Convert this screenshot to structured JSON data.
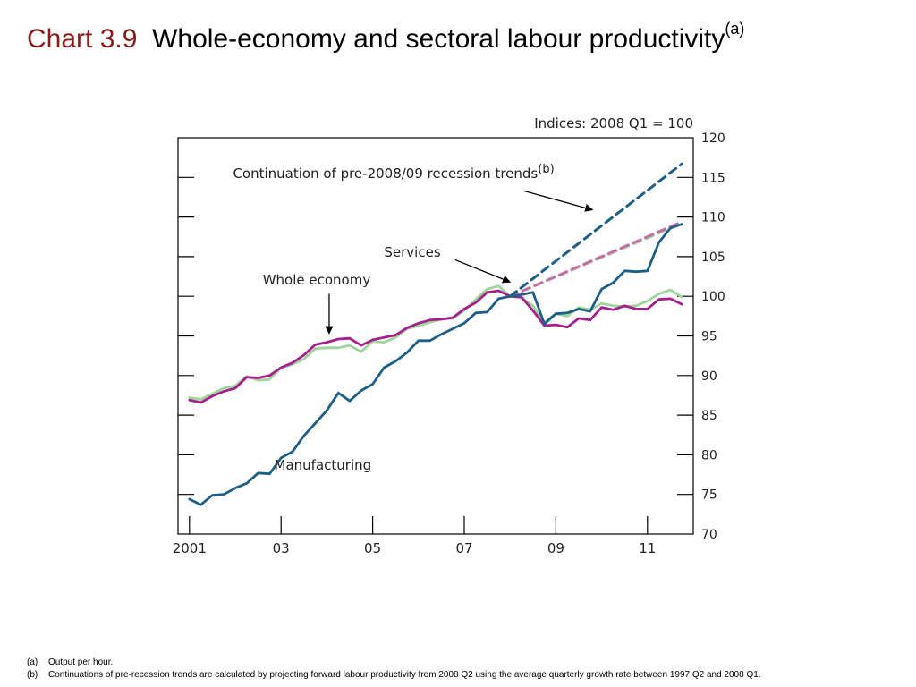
{
  "slide": {
    "chart_label": "Chart 3.9",
    "title": "Whole-economy and sectoral labour productivity",
    "title_note": "(a)"
  },
  "footnotes": [
    {
      "key": "(a)",
      "text": "Output per hour."
    },
    {
      "key": "(b)",
      "text": "Continuations of pre-recession trends are calculated by projecting forward labour productivity from 2008 Q2 using the average quarterly growth rate between 1997 Q2 and 2008 Q1."
    }
  ],
  "chart_data": {
    "type": "line",
    "units_label": "Indices:  2008 Q1 = 100",
    "ylim": [
      70,
      120
    ],
    "yticks": [
      70,
      75,
      80,
      85,
      90,
      95,
      100,
      105,
      110,
      115,
      120
    ],
    "xlim": [
      2000.75,
      2012.0
    ],
    "xticks": [
      {
        "x": 2001.0,
        "label": "2001"
      },
      {
        "x": 2003.0,
        "label": "03"
      },
      {
        "x": 2005.0,
        "label": "05"
      },
      {
        "x": 2007.0,
        "label": "07"
      },
      {
        "x": 2009.0,
        "label": "09"
      },
      {
        "x": 2011.0,
        "label": "11"
      }
    ],
    "grid": false,
    "colors": {
      "manufacturing": "#1d5f86",
      "whole_economy": "#a6218e",
      "services": "#9fd49b",
      "trend_services": "#9fd49b",
      "trend_whole": "#c56ea8"
    },
    "series": [
      {
        "key": "manufacturing",
        "name": "Manufacturing",
        "x": [
          2001.0,
          2001.25,
          2001.5,
          2001.75,
          2002.0,
          2002.25,
          2002.5,
          2002.75,
          2003.0,
          2003.25,
          2003.5,
          2003.75,
          2004.0,
          2004.25,
          2004.5,
          2004.75,
          2005.0,
          2005.25,
          2005.5,
          2005.75,
          2006.0,
          2006.25,
          2006.5,
          2006.75,
          2007.0,
          2007.25,
          2007.5,
          2007.75,
          2008.0,
          2008.25,
          2008.5,
          2008.75,
          2009.0,
          2009.25,
          2009.5,
          2009.75,
          2010.0,
          2010.25,
          2010.5,
          2010.75,
          2011.0,
          2011.25,
          2011.5,
          2011.75
        ],
        "y": [
          74.4,
          73.7,
          74.9,
          75.0,
          75.8,
          76.4,
          77.7,
          77.6,
          79.6,
          80.4,
          82.4,
          84.0,
          85.6,
          87.8,
          86.8,
          88.1,
          88.9,
          91.0,
          91.8,
          92.9,
          94.4,
          94.4,
          95.2,
          95.9,
          96.6,
          97.9,
          98.0,
          99.7,
          100.0,
          100.2,
          100.5,
          96.5,
          97.8,
          97.9,
          98.4,
          98.1,
          100.9,
          101.7,
          103.2,
          103.1,
          103.2,
          106.8,
          108.6,
          109.1
        ]
      },
      {
        "key": "whole_economy",
        "name": "Whole economy",
        "x": [
          2001.0,
          2001.25,
          2001.5,
          2001.75,
          2002.0,
          2002.25,
          2002.5,
          2002.75,
          2003.0,
          2003.25,
          2003.5,
          2003.75,
          2004.0,
          2004.25,
          2004.5,
          2004.75,
          2005.0,
          2005.25,
          2005.5,
          2005.75,
          2006.0,
          2006.25,
          2006.5,
          2006.75,
          2007.0,
          2007.25,
          2007.5,
          2007.75,
          2008.0,
          2008.25,
          2008.5,
          2008.75,
          2009.0,
          2009.25,
          2009.5,
          2009.75,
          2010.0,
          2010.25,
          2010.5,
          2010.75,
          2011.0,
          2011.25,
          2011.5,
          2011.75
        ],
        "y": [
          86.9,
          86.6,
          87.4,
          88.0,
          88.4,
          89.8,
          89.7,
          90.0,
          91.0,
          91.6,
          92.6,
          93.9,
          94.2,
          94.6,
          94.7,
          93.8,
          94.5,
          94.8,
          95.1,
          96.0,
          96.6,
          97.0,
          97.1,
          97.3,
          98.4,
          99.2,
          100.5,
          100.7,
          100.0,
          99.9,
          98.2,
          96.3,
          96.4,
          96.1,
          97.2,
          97.0,
          98.6,
          98.3,
          98.8,
          98.4,
          98.4,
          99.6,
          99.7,
          99.0
        ]
      },
      {
        "key": "services",
        "name": "Services",
        "x": [
          2001.0,
          2001.25,
          2001.5,
          2001.75,
          2002.0,
          2002.25,
          2002.5,
          2002.75,
          2003.0,
          2003.25,
          2003.5,
          2003.75,
          2004.0,
          2004.25,
          2004.5,
          2004.75,
          2005.0,
          2005.25,
          2005.5,
          2005.75,
          2006.0,
          2006.25,
          2006.5,
          2006.75,
          2007.0,
          2007.25,
          2007.5,
          2007.75,
          2008.0,
          2008.25,
          2008.5,
          2008.75,
          2009.0,
          2009.25,
          2009.5,
          2009.75,
          2010.0,
          2010.25,
          2010.5,
          2010.75,
          2011.0,
          2011.25,
          2011.5,
          2011.75
        ],
        "y": [
          87.2,
          87.0,
          87.7,
          88.4,
          88.7,
          89.9,
          89.4,
          89.5,
          91.0,
          91.4,
          92.1,
          93.4,
          93.5,
          93.5,
          93.8,
          93.0,
          94.3,
          94.2,
          94.8,
          95.9,
          96.3,
          96.7,
          97.1,
          97.2,
          98.2,
          99.6,
          100.9,
          101.3,
          100.0,
          99.8,
          98.8,
          96.7,
          97.8,
          97.5,
          98.6,
          98.3,
          99.1,
          98.8,
          98.7,
          98.8,
          99.4,
          100.3,
          100.8,
          99.9
        ]
      },
      {
        "key": "trend_manufacturing",
        "name": "",
        "dashed": true,
        "color_key": "manufacturing",
        "x": [
          2008.0,
          2011.75
        ],
        "y": [
          100.0,
          116.7
        ]
      },
      {
        "key": "trend_whole",
        "name": "",
        "dashed": true,
        "color_key": "trend_whole",
        "x": [
          2008.0,
          2011.75
        ],
        "y": [
          100.0,
          109.4
        ]
      },
      {
        "key": "trend_services",
        "name": "",
        "dashed": true,
        "color_key": "trend_services",
        "x": [
          2008.0,
          2011.75
        ],
        "y": [
          100.0,
          109.2
        ]
      }
    ],
    "annotations": [
      {
        "key": "trend",
        "text": "Continuation of pre-2008/09 recession trends",
        "sup": "(b)",
        "label_x": 2001.95,
        "label_y": 114.9,
        "arrow_from": [
          2008.3,
          113.3
        ],
        "arrow_to": [
          2009.8,
          110.9
        ]
      },
      {
        "key": "services",
        "text": "Services",
        "label_x": 2005.25,
        "label_y": 105.0,
        "arrow_from": [
          2006.8,
          104.6
        ],
        "arrow_to": [
          2008.0,
          101.8
        ]
      },
      {
        "key": "whole",
        "text": "Whole economy",
        "label_x": 2002.6,
        "label_y": 101.5,
        "arrow_from": [
          2004.05,
          100.3
        ],
        "arrow_to": [
          2004.05,
          95.3
        ]
      },
      {
        "key": "manufacturing",
        "text": "Manufacturing",
        "label_x": 2002.85,
        "label_y": 78.1
      }
    ]
  }
}
